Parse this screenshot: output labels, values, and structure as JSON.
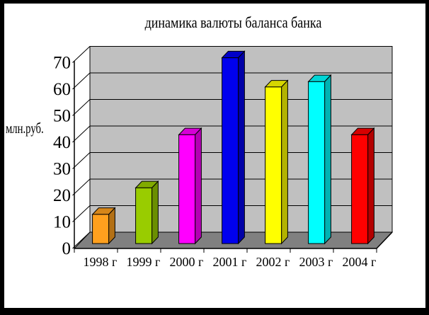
{
  "frame": {
    "border_color": "#000000",
    "canvas_color": "#ffffff"
  },
  "chart_data": {
    "type": "bar",
    "projection": "3d",
    "title": "динамика валюты баланса банка",
    "xlabel": "",
    "ylabel": "млн.руб.",
    "categories": [
      "1998 г",
      "1999 г",
      "2000 г",
      "2001 г",
      "2002 г",
      "2003 г",
      "2004 г"
    ],
    "values": [
      11,
      21,
      41,
      70,
      59,
      61,
      41
    ],
    "ylim": [
      0,
      70
    ],
    "ytick_step": 10,
    "yticks": [
      0,
      10,
      20,
      30,
      40,
      50,
      60,
      70
    ],
    "grid": true,
    "legend_position": "none",
    "bar_colors": [
      "#FFA01E",
      "#99CC00",
      "#FF00FF",
      "#0000EE",
      "#FFFF00",
      "#00FFFF",
      "#FF0000"
    ],
    "wall_color": "#C0C0C0",
    "floor_color": "#808080",
    "outline_color": "#000000",
    "text_color": "#000000"
  }
}
